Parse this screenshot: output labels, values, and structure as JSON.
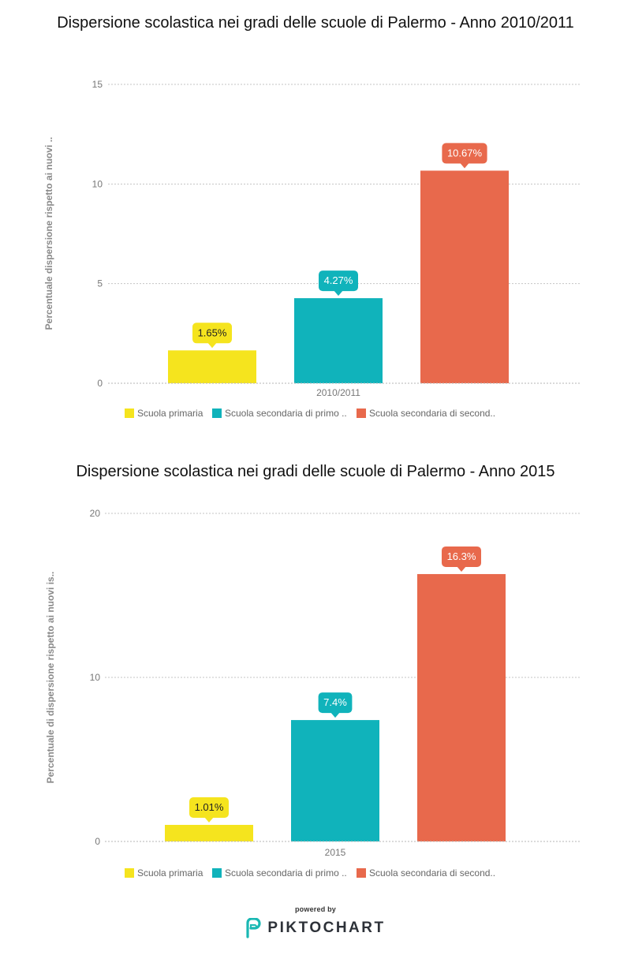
{
  "charts": [
    {
      "title": "Dispersione scolastica nei gradi delle scuole di Palermo - Anno 2010/2011",
      "chart_data": {
        "type": "bar",
        "title": "Dispersione scolastica nei gradi delle scuole di Palermo - Anno 2010/2011",
        "ylabel": "Percentuale dispersione rispetto ai nuovi ..",
        "xlabel": "",
        "categories": [
          "2010/2011"
        ],
        "ylim": [
          0,
          15
        ],
        "yticks": [
          0,
          5,
          10,
          15
        ],
        "grid": true,
        "legend_position": "bottom",
        "series": [
          {
            "name": "Scuola primaria",
            "values": [
              1.65
            ],
            "label": "1.65%",
            "color": "#f5e41e"
          },
          {
            "name": "Scuola secondaria di primo ..",
            "values": [
              4.27
            ],
            "label": "4.27%",
            "color": "#10b3bb"
          },
          {
            "name": "Scuola secondaria di second..",
            "values": [
              10.67
            ],
            "label": "10.67%",
            "color": "#e8694c"
          }
        ]
      }
    },
    {
      "title": "Dispersione scolastica nei gradi delle scuole di Palermo - Anno 2015",
      "chart_data": {
        "type": "bar",
        "title": "Dispersione scolastica nei gradi delle scuole di Palermo - Anno 2015",
        "ylabel": "Percentuale di dispersione rispetto ai nuovi is..",
        "xlabel": "",
        "categories": [
          "2015"
        ],
        "ylim": [
          0,
          20
        ],
        "yticks": [
          0,
          10,
          20
        ],
        "grid": true,
        "legend_position": "bottom",
        "series": [
          {
            "name": "Scuola primaria",
            "values": [
              1.01
            ],
            "label": "1.01%",
            "color": "#f5e41e"
          },
          {
            "name": "Scuola secondaria di primo ..",
            "values": [
              7.4
            ],
            "label": "7.4%",
            "color": "#10b3bb"
          },
          {
            "name": "Scuola secondaria di second..",
            "values": [
              16.3
            ],
            "label": "16.3%",
            "color": "#e8694c"
          }
        ]
      }
    }
  ],
  "footer": {
    "powered_by": "powered by",
    "brand": "PIKTOCHART",
    "brand_color": "#1ab8b3"
  }
}
